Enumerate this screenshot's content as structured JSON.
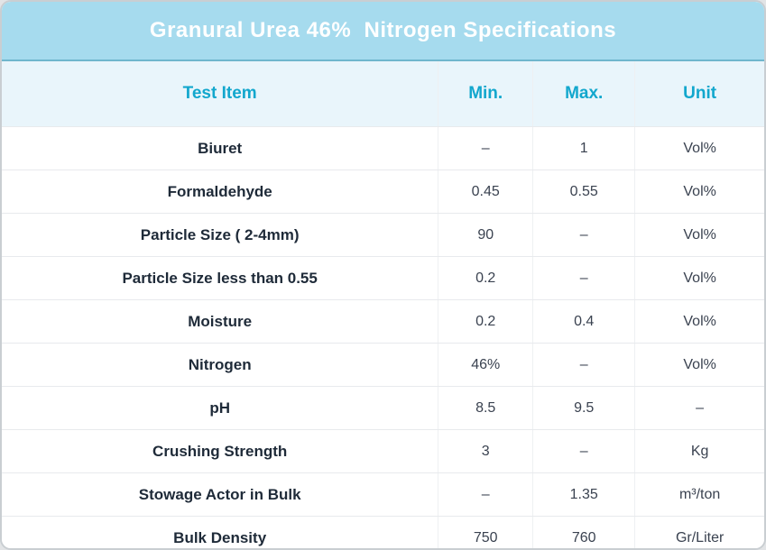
{
  "title": "Granural Urea 46%  Nitrogen Specifications",
  "chart_data": {
    "type": "table",
    "title": "Granural Urea 46%  Nitrogen Specifications",
    "columns": [
      "Test Item",
      "Min.",
      "Max.",
      "Unit"
    ],
    "rows": [
      [
        "Biuret",
        "–",
        "1",
        "Vol%"
      ],
      [
        "Formaldehyde",
        "0.45",
        "0.55",
        "Vol%"
      ],
      [
        "Particle Size ( 2-4mm)",
        "90",
        "–",
        "Vol%"
      ],
      [
        "Particle Size less than 0.55",
        "0.2",
        "–",
        "Vol%"
      ],
      [
        "Moisture",
        "0.2",
        "0.4",
        "Vol%"
      ],
      [
        "Nitrogen",
        "46%",
        "–",
        "Vol%"
      ],
      [
        "pH",
        "8.5",
        "9.5",
        "–"
      ],
      [
        "Crushing Strength",
        "3",
        "–",
        "Kg"
      ],
      [
        "Stowage Actor in Bulk",
        "–",
        "1.35",
        "m³/ton"
      ],
      [
        "Bulk Density",
        "750",
        "760",
        "Gr/Liter"
      ]
    ]
  },
  "colors": {
    "title_bar_bg": "#a6dbee",
    "title_bar_border": "#6fb6cd",
    "title_text": "#ffffff",
    "header_row_bg": "#e9f5fb",
    "header_text": "#12a7cd",
    "item_text": "#1e2a38",
    "value_text": "#3a4250",
    "row_separator": "#e8eaed"
  }
}
